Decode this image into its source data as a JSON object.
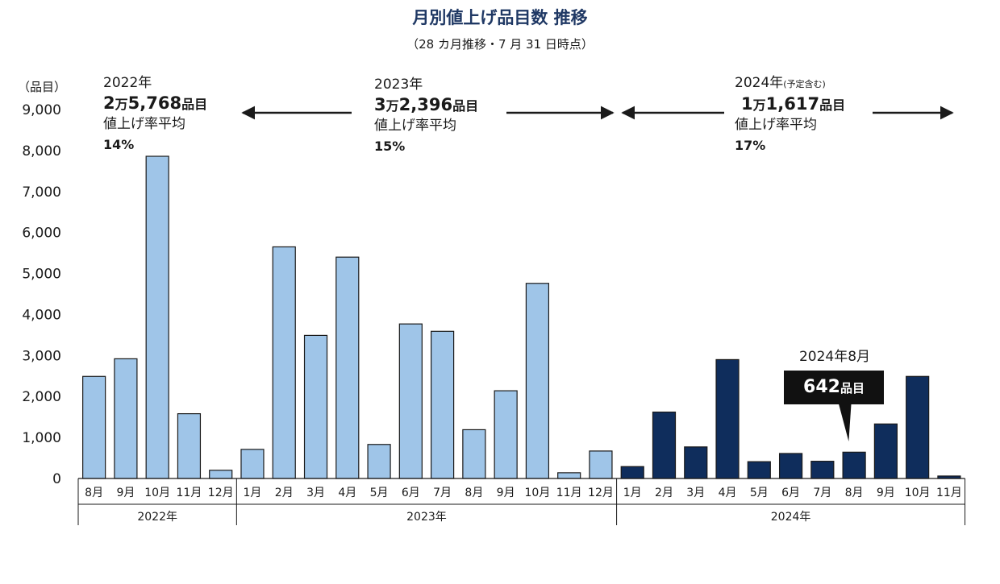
{
  "title": "月別値上げ品目数 推移",
  "subtitle": "（28 カ月推移・7 月 31 日時点）",
  "unit_label": "（品目）",
  "periods": [
    {
      "year": "2022年",
      "note": "",
      "count_man": "2",
      "count_rest": "5,768",
      "man_char": "万",
      "items_suffix": "品目",
      "rate_label": "値上げ率平均",
      "rate": "14",
      "pct": "%"
    },
    {
      "year": "2023年",
      "note": "",
      "count_man": "3",
      "count_rest": "2,396",
      "man_char": "万",
      "items_suffix": "品目",
      "rate_label": "値上げ率平均",
      "rate": "15",
      "pct": "%"
    },
    {
      "year": "2024年",
      "note": "(予定含む)",
      "count_man": "1",
      "count_rest": "1,617",
      "man_char": "万",
      "items_suffix": "品目",
      "rate_label": "値上げ率平均",
      "rate": "17",
      "pct": "%"
    }
  ],
  "callout": {
    "label": "2024年8月",
    "value": "642",
    "suffix": "品目"
  },
  "chart_data": {
    "type": "bar",
    "title": "月別値上げ品目数 推移",
    "ylabel": "（品目）",
    "ylim": [
      0,
      9000
    ],
    "yticks": [
      "0",
      "1,000",
      "2,000",
      "3,000",
      "4,000",
      "5,000",
      "6,000",
      "7,000",
      "8,000",
      "9,000"
    ],
    "categories": [
      "8月",
      "9月",
      "10月",
      "11月",
      "12月",
      "1月",
      "2月",
      "3月",
      "4月",
      "5月",
      "6月",
      "7月",
      "8月",
      "9月",
      "10月",
      "11月",
      "12月",
      "1月",
      "2月",
      "3月",
      "4月",
      "5月",
      "6月",
      "7月",
      "8月",
      "9月",
      "10月",
      "11月"
    ],
    "values": [
      2490,
      2920,
      7860,
      1580,
      200,
      710,
      5650,
      3490,
      5400,
      830,
      3770,
      3590,
      1190,
      2140,
      4760,
      140,
      670,
      290,
      1620,
      770,
      2900,
      410,
      610,
      420,
      642,
      1330,
      2490,
      60
    ],
    "groups": [
      {
        "label": "2022年",
        "start": 0,
        "end": 4,
        "color": "#9fc5e8"
      },
      {
        "label": "2023年",
        "start": 5,
        "end": 16,
        "color": "#9fc5e8"
      },
      {
        "label": "2024年",
        "start": 17,
        "end": 27,
        "color": "#0f2d5c"
      }
    ],
    "bar_stroke": "#1a1a1a"
  }
}
